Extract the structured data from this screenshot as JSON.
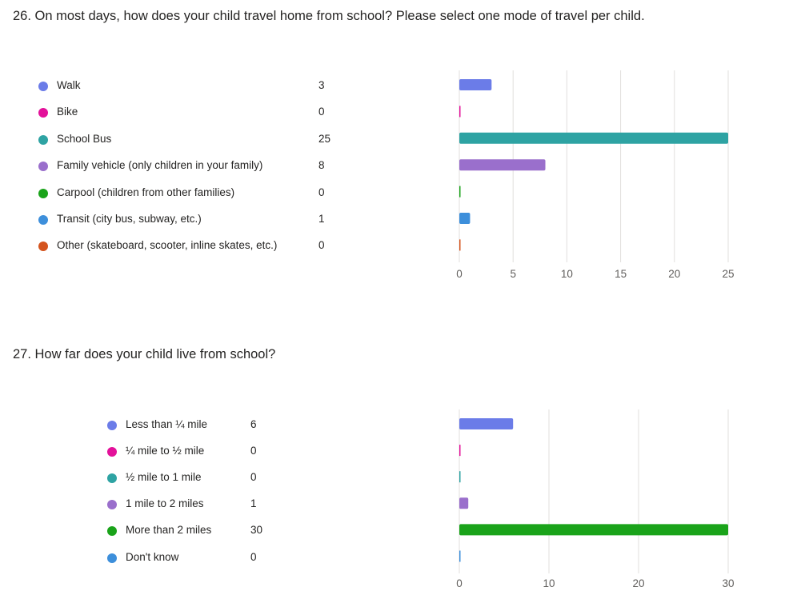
{
  "questions": [
    {
      "title": "26. On most days, how does your child travel home from school? Please select one mode of travel per child.",
      "chart_data": {
        "type": "bar",
        "orientation": "horizontal",
        "categories": [
          "Walk",
          "Bike",
          "School Bus",
          "Family vehicle (only children in your family)",
          "Carpool (children from other families)",
          "Transit (city bus, subway, etc.)",
          "Other (skateboard, scooter, inline skates, etc.)"
        ],
        "values": [
          3,
          0,
          25,
          8,
          0,
          1,
          0
        ],
        "colors": [
          "#6b7ce8",
          "#e3119a",
          "#2ea3a3",
          "#9a6fcc",
          "#1aa31a",
          "#3d8fdb",
          "#d4541e"
        ],
        "xticks": [
          0,
          5,
          10,
          15,
          20,
          25
        ],
        "xlim": [
          0,
          25
        ],
        "grid": true,
        "legend": "left"
      }
    },
    {
      "title": "27. How far does your child live from school?",
      "chart_data": {
        "type": "bar",
        "orientation": "horizontal",
        "categories": [
          "Less than ¼ mile",
          "¼ mile to ½ mile",
          "½ mile to 1 mile",
          "1 mile to 2 miles",
          "More than 2 miles",
          "Don't know"
        ],
        "values": [
          6,
          0,
          0,
          1,
          30,
          0
        ],
        "colors": [
          "#6b7ce8",
          "#e3119a",
          "#2ea3a3",
          "#9a6fcc",
          "#1aa31a",
          "#3d8fdb"
        ],
        "xticks": [
          0,
          10,
          20,
          30
        ],
        "xlim": [
          0,
          30
        ],
        "grid": true,
        "legend": "left"
      }
    }
  ]
}
